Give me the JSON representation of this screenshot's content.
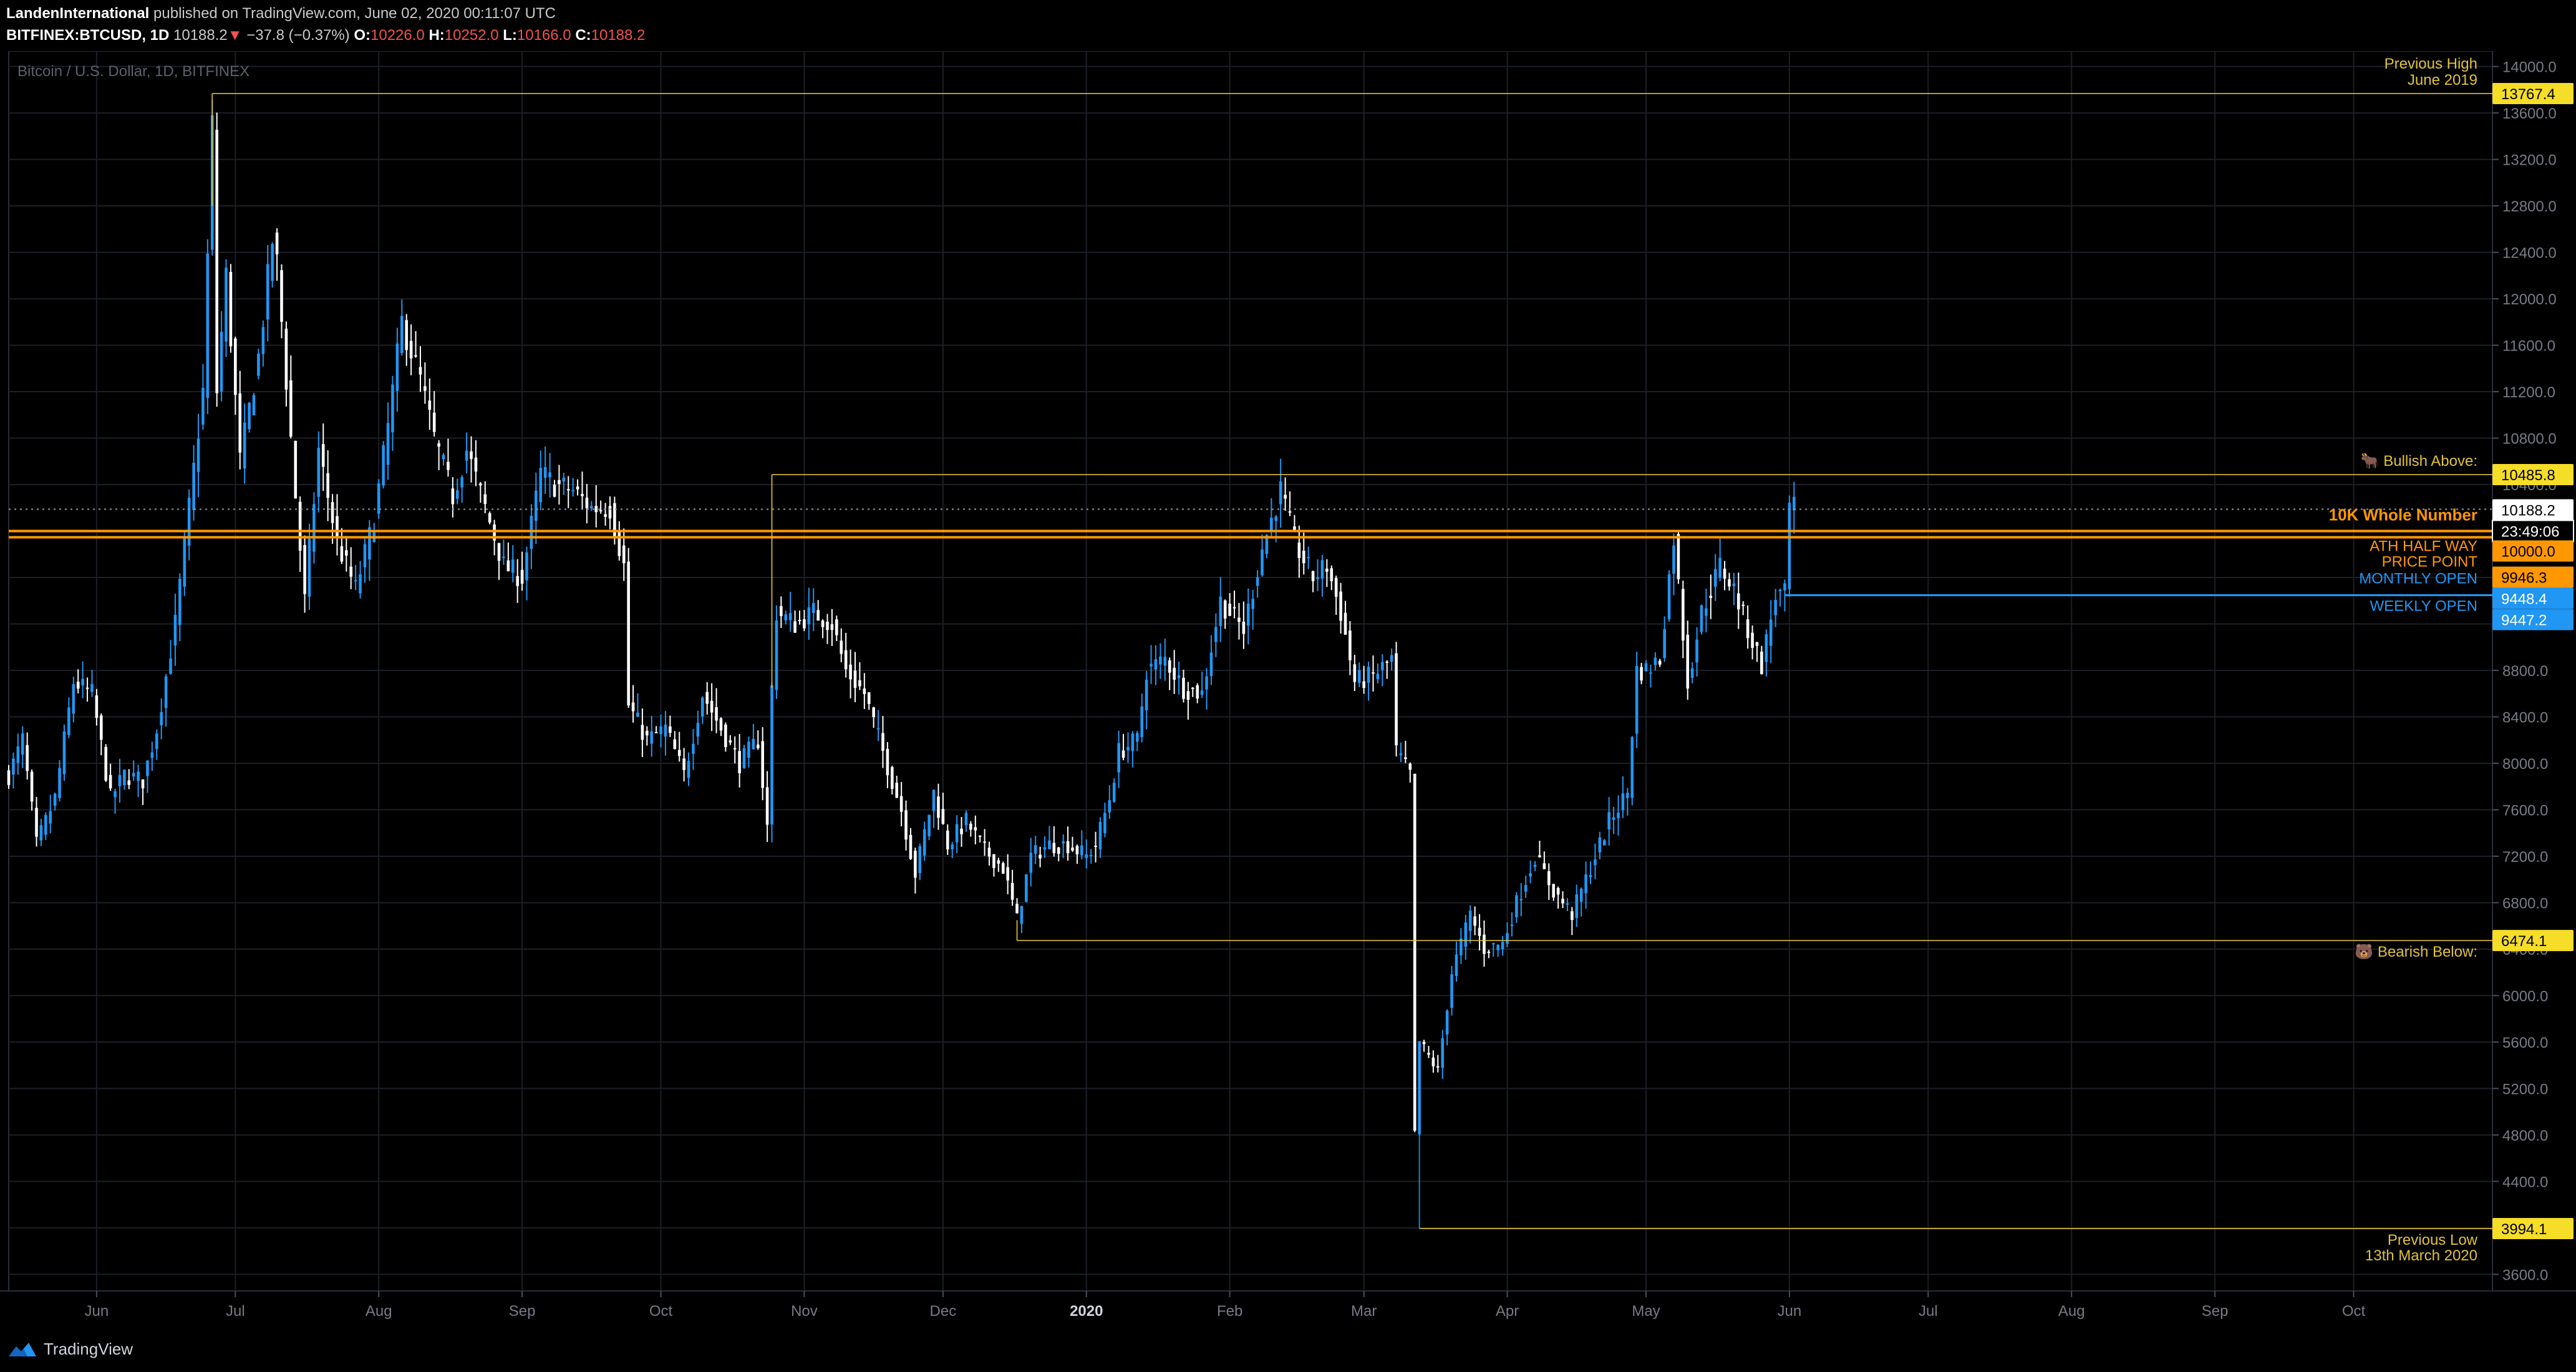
{
  "header": {
    "author": "LandenInternational",
    "published_text": "published on TradingView.com, June 02, 2020 00:11:07 UTC",
    "symbol": "BITFINEX:BTCUSD, 1D",
    "last_price": "10188.2",
    "change_arrow": "▼",
    "change": "−37.8 (−0.37%)",
    "o_label": "O:",
    "o_value": "10226.0",
    "h_label": "H:",
    "h_value": "10252.0",
    "l_label": "L:",
    "l_value": "10166.0",
    "c_label": "C:",
    "c_value": "10188.2"
  },
  "footer": {
    "brand": "TradingView",
    "logo_icon": "tradingview-logo-icon"
  },
  "colors": {
    "background": "#000000",
    "grid": "#1c1f26",
    "up": "#2196f3",
    "down": "#ffffff",
    "gold": "#e0c23a",
    "orange": "#ff9800",
    "blue": "#2196f3"
  },
  "chart_data": {
    "type": "candlestick",
    "title": "Bitcoin / U.S. Dollar, 1D, BITFINEX",
    "ylim": [
      3500,
      14100
    ],
    "yticks": [
      3600,
      4000,
      4400,
      4800,
      5200,
      5600,
      6000,
      6400,
      6800,
      7200,
      7600,
      8000,
      8400,
      8800,
      9200,
      9600,
      10000,
      10400,
      10800,
      11200,
      11600,
      12000,
      12400,
      12800,
      13200,
      13600,
      14000
    ],
    "ytick_labels": [
      "3600.0",
      "4000.0",
      "4400.0",
      "4800.0",
      "5200.0",
      "5600.0",
      "6000.0",
      "6400.0",
      "6800.0",
      "7200.0",
      "7600.0",
      "8000.0",
      "8400.0",
      "8800.0",
      "9200.0",
      "9600.0",
      "10000.0",
      "10400.0",
      "10800.0",
      "11200.0",
      "11600.0",
      "12000.0",
      "12400.0",
      "12800.0",
      "13200.0",
      "13600.0",
      "14000.0"
    ],
    "x_range": [
      "2019-05-13",
      "2020-10-31"
    ],
    "xticks": [
      {
        "date": "2019-06-01",
        "label": "Jun"
      },
      {
        "date": "2019-07-01",
        "label": "Jul"
      },
      {
        "date": "2019-08-01",
        "label": "Aug"
      },
      {
        "date": "2019-09-01",
        "label": "Sep"
      },
      {
        "date": "2019-10-01",
        "label": "Oct"
      },
      {
        "date": "2019-11-01",
        "label": "Nov"
      },
      {
        "date": "2019-12-01",
        "label": "Dec"
      },
      {
        "date": "2020-01-01",
        "label": "2020"
      },
      {
        "date": "2020-02-01",
        "label": "Feb"
      },
      {
        "date": "2020-03-01",
        "label": "Mar"
      },
      {
        "date": "2020-04-01",
        "label": "Apr"
      },
      {
        "date": "2020-05-01",
        "label": "May"
      },
      {
        "date": "2020-06-01",
        "label": "Jun"
      },
      {
        "date": "2020-07-01",
        "label": "Jul"
      },
      {
        "date": "2020-08-01",
        "label": "Aug"
      },
      {
        "date": "2020-09-01",
        "label": "Sep"
      },
      {
        "date": "2020-10-01",
        "label": "Oct"
      }
    ],
    "grid": true,
    "price_path": [
      [
        "2019-05-13",
        7900
      ],
      [
        "2019-05-16",
        8200
      ],
      [
        "2019-05-19",
        7300
      ],
      [
        "2019-05-23",
        7700
      ],
      [
        "2019-05-27",
        8700
      ],
      [
        "2019-05-31",
        8600
      ],
      [
        "2019-06-04",
        7700
      ],
      [
        "2019-06-07",
        7900
      ],
      [
        "2019-06-11",
        7850
      ],
      [
        "2019-06-14",
        8300
      ],
      [
        "2019-06-18",
        9200
      ],
      [
        "2019-06-21",
        10200
      ],
      [
        "2019-06-24",
        11200
      ],
      [
        "2019-06-26",
        13500
      ],
      [
        "2019-06-27",
        11200
      ],
      [
        "2019-06-29",
        12200
      ],
      [
        "2019-07-02",
        10600
      ],
      [
        "2019-07-06",
        11500
      ],
      [
        "2019-07-09",
        12500
      ],
      [
        "2019-07-10",
        12300
      ],
      [
        "2019-07-14",
        10300
      ],
      [
        "2019-07-16",
        9400
      ],
      [
        "2019-07-19",
        10700
      ],
      [
        "2019-07-23",
        9900
      ],
      [
        "2019-07-27",
        9500
      ],
      [
        "2019-07-31",
        10100
      ],
      [
        "2019-08-03",
        10900
      ],
      [
        "2019-08-06",
        11800
      ],
      [
        "2019-08-10",
        11300
      ],
      [
        "2019-08-13",
        10800
      ],
      [
        "2019-08-17",
        10300
      ],
      [
        "2019-08-20",
        10700
      ],
      [
        "2019-08-24",
        10200
      ],
      [
        "2019-08-28",
        9700
      ],
      [
        "2019-09-01",
        9600
      ],
      [
        "2019-09-05",
        10500
      ],
      [
        "2019-09-08",
        10400
      ],
      [
        "2019-09-12",
        10350
      ],
      [
        "2019-09-16",
        10200
      ],
      [
        "2019-09-20",
        10200
      ],
      [
        "2019-09-23",
        9700
      ],
      [
        "2019-09-24",
        8500
      ],
      [
        "2019-09-28",
        8200
      ],
      [
        "2019-10-02",
        8300
      ],
      [
        "2019-10-06",
        7900
      ],
      [
        "2019-10-10",
        8600
      ],
      [
        "2019-10-14",
        8300
      ],
      [
        "2019-10-18",
        8000
      ],
      [
        "2019-10-22",
        8200
      ],
      [
        "2019-10-24",
        7450
      ],
      [
        "2019-10-25",
        8650
      ],
      [
        "2019-10-26",
        9300
      ],
      [
        "2019-10-30",
        9200
      ],
      [
        "2019-11-03",
        9300
      ],
      [
        "2019-11-07",
        9200
      ],
      [
        "2019-11-10",
        8800
      ],
      [
        "2019-11-14",
        8600
      ],
      [
        "2019-11-18",
        8100
      ],
      [
        "2019-11-22",
        7600
      ],
      [
        "2019-11-25",
        7050
      ],
      [
        "2019-11-29",
        7750
      ],
      [
        "2019-12-02",
        7300
      ],
      [
        "2019-12-06",
        7500
      ],
      [
        "2019-12-10",
        7250
      ],
      [
        "2019-12-14",
        7100
      ],
      [
        "2019-12-17",
        6650
      ],
      [
        "2019-12-20",
        7200
      ],
      [
        "2019-12-24",
        7300
      ],
      [
        "2019-12-28",
        7300
      ],
      [
        "2020-01-01",
        7200
      ],
      [
        "2020-01-03",
        7300
      ],
      [
        "2020-01-06",
        7700
      ],
      [
        "2020-01-08",
        8100
      ],
      [
        "2020-01-12",
        8200
      ],
      [
        "2020-01-14",
        8800
      ],
      [
        "2020-01-18",
        8900
      ],
      [
        "2020-01-22",
        8650
      ],
      [
        "2020-01-26",
        8600
      ],
      [
        "2020-01-30",
        9400
      ],
      [
        "2020-02-04",
        9150
      ],
      [
        "2020-02-08",
        9850
      ],
      [
        "2020-02-12",
        10350
      ],
      [
        "2020-02-15",
        9900
      ],
      [
        "2020-02-19",
        9600
      ],
      [
        "2020-02-22",
        9700
      ],
      [
        "2020-02-25",
        9300
      ],
      [
        "2020-02-28",
        8700
      ],
      [
        "2020-03-03",
        8750
      ],
      [
        "2020-03-07",
        8900
      ],
      [
        "2020-03-08",
        8100
      ],
      [
        "2020-03-11",
        7900
      ],
      [
        "2020-03-12",
        4800
      ],
      [
        "2020-03-13",
        5600
      ],
      [
        "2020-03-17",
        5350
      ],
      [
        "2020-03-20",
        6200
      ],
      [
        "2020-03-24",
        6700
      ],
      [
        "2020-03-27",
        6400
      ],
      [
        "2020-03-31",
        6450
      ],
      [
        "2020-04-03",
        6800
      ],
      [
        "2020-04-07",
        7200
      ],
      [
        "2020-04-11",
        6900
      ],
      [
        "2020-04-15",
        6700
      ],
      [
        "2020-04-19",
        7100
      ],
      [
        "2020-04-23",
        7500
      ],
      [
        "2020-04-27",
        7750
      ],
      [
        "2020-04-29",
        8800
      ],
      [
        "2020-05-01",
        8800
      ],
      [
        "2020-05-04",
        8900
      ],
      [
        "2020-05-07",
        9950
      ],
      [
        "2020-05-10",
        8700
      ],
      [
        "2020-05-13",
        9300
      ],
      [
        "2020-05-17",
        9700
      ],
      [
        "2020-05-20",
        9500
      ],
      [
        "2020-05-23",
        9150
      ],
      [
        "2020-05-26",
        8850
      ],
      [
        "2020-05-29",
        9450
      ],
      [
        "2020-05-31",
        9450
      ],
      [
        "2020-06-01",
        10200
      ],
      [
        "2020-06-02",
        10188.2
      ]
    ],
    "horizontal_levels": [
      {
        "value": 13767.4,
        "label": "13767.4",
        "start": "2019-06-26",
        "color_key": "gold"
      },
      {
        "value": 10485.8,
        "label": "10485.8",
        "start": "2019-10-25",
        "color_key": "gold"
      },
      {
        "value": 10188.2,
        "label": "10188.2",
        "start": "2019-05-13",
        "color_key": "dotted"
      },
      {
        "value": 10000.0,
        "label": "10000.0",
        "start": "2019-05-13",
        "color_key": "orange"
      },
      {
        "value": 9946.3,
        "label": "9946.3",
        "start": "2019-05-13",
        "color_key": "orange"
      },
      {
        "value": 9448.4,
        "label": "9448.4",
        "start": "2020-05-31",
        "color_key": "blue"
      },
      {
        "value": 9447.2,
        "label": "9447.2",
        "start": "2020-05-31",
        "color_key": "blue"
      },
      {
        "value": 6474.1,
        "label": "6474.1",
        "start": "2019-12-17",
        "color_key": "gold"
      },
      {
        "value": 3994.1,
        "label": "3994.1",
        "start": "2020-03-13",
        "color_key": "gold"
      }
    ],
    "vertical_lines": [
      {
        "date": "2019-06-26",
        "from": 13767.4,
        "to": 12800
      },
      {
        "date": "2019-10-25",
        "from": 10485.8,
        "to": 8650
      },
      {
        "date": "2019-12-17",
        "from": 6474.1,
        "to": 6650
      },
      {
        "date": "2020-03-13",
        "from": 3994.1,
        "to": 4800
      }
    ],
    "countdown": "23:49:06",
    "annotations": [
      {
        "id": "prev-high",
        "lines": [
          "Previous High",
          "June 2019"
        ],
        "color_key": "gold"
      },
      {
        "id": "bullish",
        "lines": [
          "🐂 Bullish Above:"
        ],
        "color_key": "gold"
      },
      {
        "id": "tenk",
        "lines": [
          "10K Whole Number"
        ],
        "color_key": "orange",
        "bold": true
      },
      {
        "id": "ath",
        "lines": [
          "ATH HALF WAY",
          "PRICE POINT"
        ],
        "color_key": "orange"
      },
      {
        "id": "monthly",
        "lines": [
          "MONTHLY OPEN"
        ],
        "color_key": "blue"
      },
      {
        "id": "weekly",
        "lines": [
          "WEEKLY OPEN"
        ],
        "color_key": "blue"
      },
      {
        "id": "bearish",
        "lines": [
          "🐻 Bearish Below:"
        ],
        "color_key": "gold"
      },
      {
        "id": "prev-low",
        "lines": [
          "Previous Low",
          "13th March 2020"
        ],
        "color_key": "gold"
      }
    ]
  }
}
